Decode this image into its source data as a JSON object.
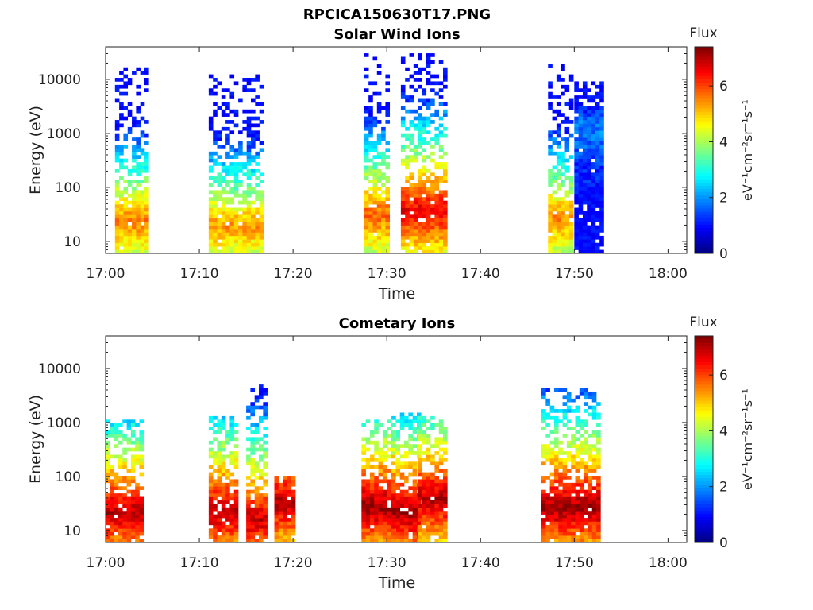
{
  "figure": {
    "title": "RPCICA150630T17.PNG"
  },
  "colorbar": {
    "label": "Flux",
    "unit": "eV⁻¹cm⁻²sr⁻¹s⁻¹",
    "ticks": [
      "0",
      "2",
      "4",
      "6"
    ],
    "range": [
      0,
      7.4
    ],
    "colormap": "jet"
  },
  "chart_data": [
    {
      "type": "heatmap",
      "title": "Solar Wind Ions",
      "xlabel": "Time",
      "ylabel": "Energy (eV)",
      "xlim": [
        "17:00",
        "18:02"
      ],
      "xticks": [
        "17:00",
        "17:10",
        "17:20",
        "17:30",
        "17:40",
        "17:50",
        "18:00"
      ],
      "yscale": "log",
      "ylim": [
        6,
        40000
      ],
      "yticks": [
        "10",
        "100",
        "1000",
        "10000"
      ],
      "bursts": [
        {
          "start": "17:01",
          "end": "17:04.5",
          "core_energy_eV": 22,
          "core_flux": 5.6,
          "max_energy_eV": 15000
        },
        {
          "start": "17:11",
          "end": "17:16.8",
          "core_energy_eV": 18,
          "core_flux": 5.4,
          "max_energy_eV": 12000
        },
        {
          "start": "17:27.6",
          "end": "17:30.2",
          "core_energy_eV": 30,
          "core_flux": 5.8,
          "max_energy_eV": 30000
        },
        {
          "start": "17:31.5",
          "end": "17:36.3",
          "core_energy_eV": 35,
          "core_flux": 6.6,
          "max_energy_eV": 30000
        },
        {
          "start": "17:47.2",
          "end": "17:49.5",
          "core_energy_eV": 25,
          "core_flux": 5.5,
          "max_energy_eV": 22000
        },
        {
          "start": "17:50",
          "end": "17:53",
          "core_energy_eV": 1400,
          "core_flux": 1.9,
          "max_energy_eV": 9000
        }
      ]
    },
    {
      "type": "heatmap",
      "title": "Cometary Ions",
      "xlabel": "Time",
      "ylabel": "Energy (eV)",
      "xlim": [
        "17:00",
        "18:02"
      ],
      "xticks": [
        "17:00",
        "17:10",
        "17:20",
        "17:30",
        "17:40",
        "17:50",
        "18:00"
      ],
      "yscale": "log",
      "ylim": [
        6,
        40000
      ],
      "yticks": [
        "10",
        "100",
        "1000",
        "10000"
      ],
      "bursts": [
        {
          "start": "17:00",
          "end": "17:04",
          "core_energy_eV": 20,
          "core_flux": 7.0,
          "max_energy_eV": 1000
        },
        {
          "start": "17:11",
          "end": "17:14",
          "core_energy_eV": 20,
          "core_flux": 7.0,
          "max_energy_eV": 1200
        },
        {
          "start": "17:15",
          "end": "17:17",
          "core_energy_eV": 15,
          "core_flux": 6.9,
          "max_energy_eV": 5000
        },
        {
          "start": "17:18",
          "end": "17:20",
          "core_energy_eV": 30,
          "core_flux": 7.0,
          "max_energy_eV": 100
        },
        {
          "start": "17:27.3",
          "end": "17:30.5",
          "core_energy_eV": 25,
          "core_flux": 7.2,
          "max_energy_eV": 1000
        },
        {
          "start": "17:30.5",
          "end": "17:33.3",
          "core_energy_eV": 20,
          "core_flux": 7.2,
          "max_energy_eV": 1500
        },
        {
          "start": "17:33.3",
          "end": "17:36.3",
          "core_energy_eV": 35,
          "core_flux": 7.0,
          "max_energy_eV": 1200
        },
        {
          "start": "17:46.5",
          "end": "17:52.8",
          "core_energy_eV": 25,
          "core_flux": 7.2,
          "max_energy_eV": 4000
        }
      ]
    }
  ]
}
